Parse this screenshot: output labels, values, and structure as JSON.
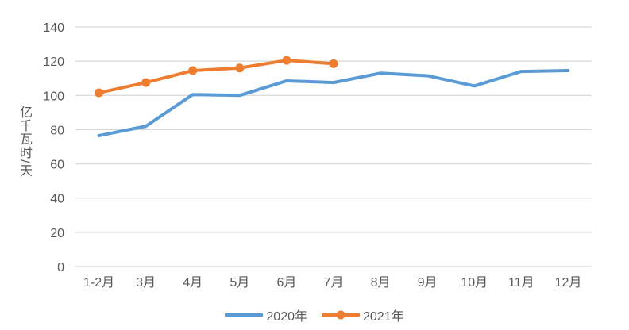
{
  "chart_data": {
    "type": "line",
    "title": "",
    "xlabel": "",
    "ylabel": "亿千瓦时/天",
    "categories": [
      "1-2月",
      "3月",
      "4月",
      "5月",
      "6月",
      "7月",
      "8月",
      "9月",
      "10月",
      "11月",
      "12月"
    ],
    "series": [
      {
        "name": "2020年",
        "color": "#5B9BD5",
        "marker": false,
        "values": [
          76.5,
          82,
          100.5,
          100,
          108.5,
          107.5,
          113,
          111.5,
          105.5,
          114,
          114.5
        ]
      },
      {
        "name": "2021年",
        "color": "#ED7D31",
        "marker": true,
        "values": [
          101.5,
          107.5,
          114.5,
          116,
          120.5,
          118.5
        ]
      }
    ],
    "ylim": [
      0,
      140
    ],
    "ytick_step": 20,
    "ytick_labels": [
      "0",
      "20",
      "40",
      "60",
      "80",
      "100",
      "120",
      "140"
    ],
    "grid": "horizontal",
    "legend_position": "bottom-center",
    "gridline_color": "#D9D9D9",
    "axis_text_color": "#595959",
    "background_color": "#FFFFFF"
  }
}
